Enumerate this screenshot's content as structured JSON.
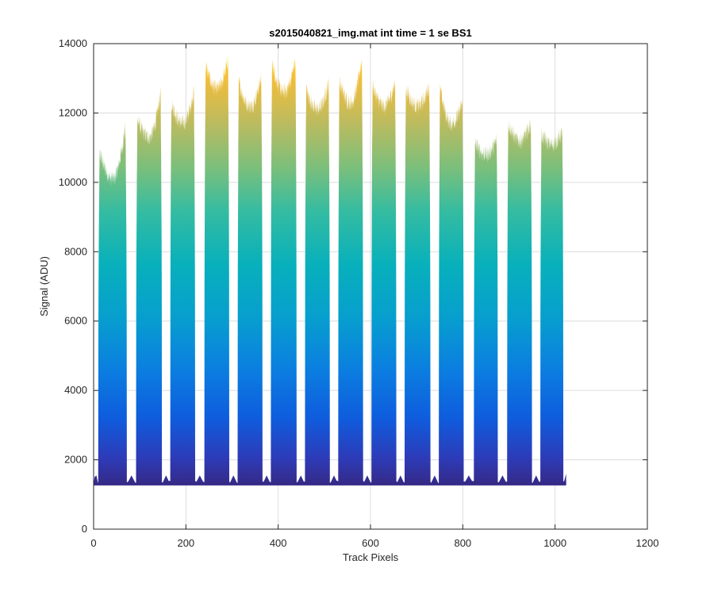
{
  "chart_data": {
    "type": "area",
    "title": "s2015040821_img.mat int time = 1 se   BS1",
    "xlabel": "Track Pixels",
    "ylabel": "Signal (ADU)",
    "xlim": [
      0,
      1200
    ],
    "ylim": [
      0,
      14000
    ],
    "xticks": [
      0,
      200,
      400,
      600,
      800,
      1000,
      1200
    ],
    "yticks": [
      0,
      2000,
      4000,
      6000,
      8000,
      10000,
      12000,
      14000
    ],
    "grid": true,
    "colormap": "parula",
    "baseline": 1300,
    "data_extent": [
      0,
      1024
    ],
    "bands": [
      {
        "x_start": 10,
        "x_end": 72,
        "y_start": 11000,
        "y_min": 10100,
        "y_end": 11900
      },
      {
        "x_start": 92,
        "x_end": 148,
        "y_start": 11900,
        "y_min": 11300,
        "y_end": 12800
      },
      {
        "x_start": 166,
        "x_end": 220,
        "y_start": 12400,
        "y_min": 11700,
        "y_end": 12800
      },
      {
        "x_start": 240,
        "x_end": 294,
        "y_start": 13500,
        "y_min": 12700,
        "y_end": 13700
      },
      {
        "x_start": 312,
        "x_end": 366,
        "y_start": 13000,
        "y_min": 12200,
        "y_end": 13200
      },
      {
        "x_start": 384,
        "x_end": 440,
        "y_start": 13600,
        "y_min": 12600,
        "y_end": 13700
      },
      {
        "x_start": 458,
        "x_end": 512,
        "y_start": 12800,
        "y_min": 12100,
        "y_end": 13000
      },
      {
        "x_start": 530,
        "x_end": 584,
        "y_start": 13000,
        "y_min": 12300,
        "y_end": 13800
      },
      {
        "x_start": 602,
        "x_end": 656,
        "y_start": 12900,
        "y_min": 12200,
        "y_end": 13000
      },
      {
        "x_start": 674,
        "x_end": 730,
        "y_start": 12800,
        "y_min": 12200,
        "y_end": 12900
      },
      {
        "x_start": 748,
        "x_end": 802,
        "y_start": 12900,
        "y_min": 11700,
        "y_end": 12400
      },
      {
        "x_start": 824,
        "x_end": 876,
        "y_start": 11200,
        "y_min": 10800,
        "y_end": 11300
      },
      {
        "x_start": 896,
        "x_end": 950,
        "y_start": 11800,
        "y_min": 11200,
        "y_end": 11800
      },
      {
        "x_start": 968,
        "x_end": 1018,
        "y_start": 11400,
        "y_min": 11100,
        "y_end": 11500
      }
    ]
  }
}
